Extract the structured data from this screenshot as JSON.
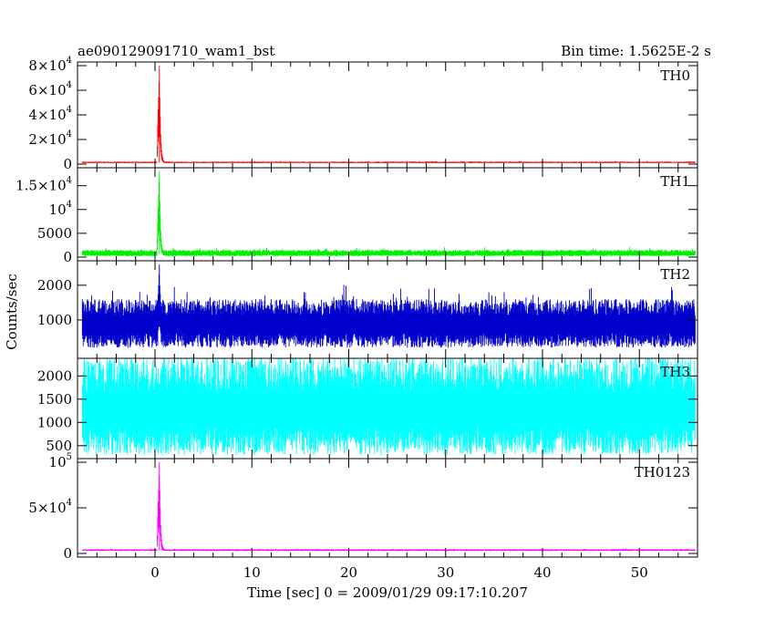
{
  "chart_data": {
    "type": "line",
    "title": "ae090129091710_wam1_bst",
    "subtitle": "Bin time: 1.5625E-2 s",
    "xlabel": "Time [sec] 0 = 2009/01/29 09:17:10.207",
    "ylabel": "Counts/sec",
    "xlim": [
      -8,
      56
    ],
    "x_data_range": [
      -7.5,
      55.8
    ],
    "x_ticks": [
      0,
      10,
      20,
      30,
      40,
      50
    ],
    "x_tick_labels": [
      "0",
      "10",
      "20",
      "30",
      "40",
      "50"
    ],
    "grid": false,
    "panels": [
      {
        "name": "TH0",
        "color": "#ff0000",
        "ylim": [
          0,
          80000
        ],
        "y_ticks": [
          {
            "value": 0,
            "mantissa": "0",
            "exponent": ""
          },
          {
            "value": 20000,
            "mantissa": "2×10",
            "exponent": "4"
          },
          {
            "value": 40000,
            "mantissa": "4×10",
            "exponent": "4"
          },
          {
            "value": 60000,
            "mantissa": "6×10",
            "exponent": "4"
          },
          {
            "value": 80000,
            "mantissa": "8×10",
            "exponent": "4"
          }
        ],
        "baseline": 1200,
        "noise_low": 400,
        "noise_high": 900,
        "peak_time": 0.45,
        "peak_value": 80000,
        "peak_profile": [
          [
            0.2,
            2500
          ],
          [
            0.3,
            40000
          ],
          [
            0.4,
            62000
          ],
          [
            0.45,
            80000
          ],
          [
            0.5,
            55000
          ],
          [
            0.6,
            22000
          ],
          [
            0.7,
            9000
          ],
          [
            0.85,
            3500
          ],
          [
            1.0,
            1800
          ]
        ],
        "overflow": false
      },
      {
        "name": "TH1",
        "color": "#00ee00",
        "ylim": [
          0,
          18000
        ],
        "y_ticks": [
          {
            "value": 0,
            "mantissa": "0",
            "exponent": ""
          },
          {
            "value": 5000,
            "mantissa": "5000",
            "exponent": ""
          },
          {
            "value": 10000,
            "mantissa": "10",
            "exponent": "4"
          },
          {
            "value": 15000,
            "mantissa": "1.5×10",
            "exponent": "4"
          }
        ],
        "baseline": 650,
        "noise_low": 450,
        "noise_high": 900,
        "peak_time": 0.45,
        "peak_value": 18000,
        "peak_profile": [
          [
            0.2,
            1500
          ],
          [
            0.3,
            9000
          ],
          [
            0.4,
            15000
          ],
          [
            0.45,
            18000
          ],
          [
            0.5,
            12000
          ],
          [
            0.6,
            5000
          ],
          [
            0.7,
            2200
          ],
          [
            0.85,
            1100
          ],
          [
            1.0,
            800
          ]
        ],
        "overflow": false
      },
      {
        "name": "TH2",
        "color": "#0000cc",
        "ylim": [
          0,
          2600
        ],
        "y_ticks": [
          {
            "value": 1000,
            "mantissa": "1000",
            "exponent": ""
          },
          {
            "value": 2000,
            "mantissa": "2000",
            "exponent": ""
          }
        ],
        "baseline": 800,
        "noise_low": 600,
        "noise_high": 800,
        "peak_time": 0.45,
        "peak_value": 2600,
        "peak_profile": [
          [
            0.3,
            1600
          ],
          [
            0.4,
            2200
          ],
          [
            0.45,
            2600
          ],
          [
            0.5,
            2000
          ],
          [
            0.6,
            1500
          ]
        ],
        "overflow": false
      },
      {
        "name": "TH3",
        "color": "#00ffff",
        "ylim": [
          300,
          2300
        ],
        "y_ticks": [
          {
            "value": 500,
            "mantissa": "500",
            "exponent": ""
          },
          {
            "value": 1000,
            "mantissa": "1000",
            "exponent": ""
          },
          {
            "value": 1500,
            "mantissa": "1500",
            "exponent": ""
          },
          {
            "value": 2000,
            "mantissa": "2000",
            "exponent": ""
          }
        ],
        "baseline": 1150,
        "noise_low": 850,
        "noise_high": 1250,
        "peak_time": null,
        "peak_value": null,
        "peak_profile": [],
        "overflow": true
      },
      {
        "name": "TH0123",
        "color": "#ff00ff",
        "ylim": [
          0,
          100000
        ],
        "y_ticks": [
          {
            "value": 0,
            "mantissa": "0",
            "exponent": ""
          },
          {
            "value": 50000,
            "mantissa": "5×10",
            "exponent": "4"
          },
          {
            "value": 100000,
            "mantissa": "10",
            "exponent": "5"
          }
        ],
        "baseline": 3500,
        "noise_low": 800,
        "noise_high": 1200,
        "peak_time": 0.45,
        "peak_value": 100000,
        "peak_profile": [
          [
            0.2,
            6000
          ],
          [
            0.3,
            50000
          ],
          [
            0.4,
            80000
          ],
          [
            0.45,
            100000
          ],
          [
            0.5,
            70000
          ],
          [
            0.6,
            28000
          ],
          [
            0.7,
            12000
          ],
          [
            0.85,
            6000
          ],
          [
            1.0,
            4500
          ]
        ],
        "overflow": false
      }
    ]
  }
}
